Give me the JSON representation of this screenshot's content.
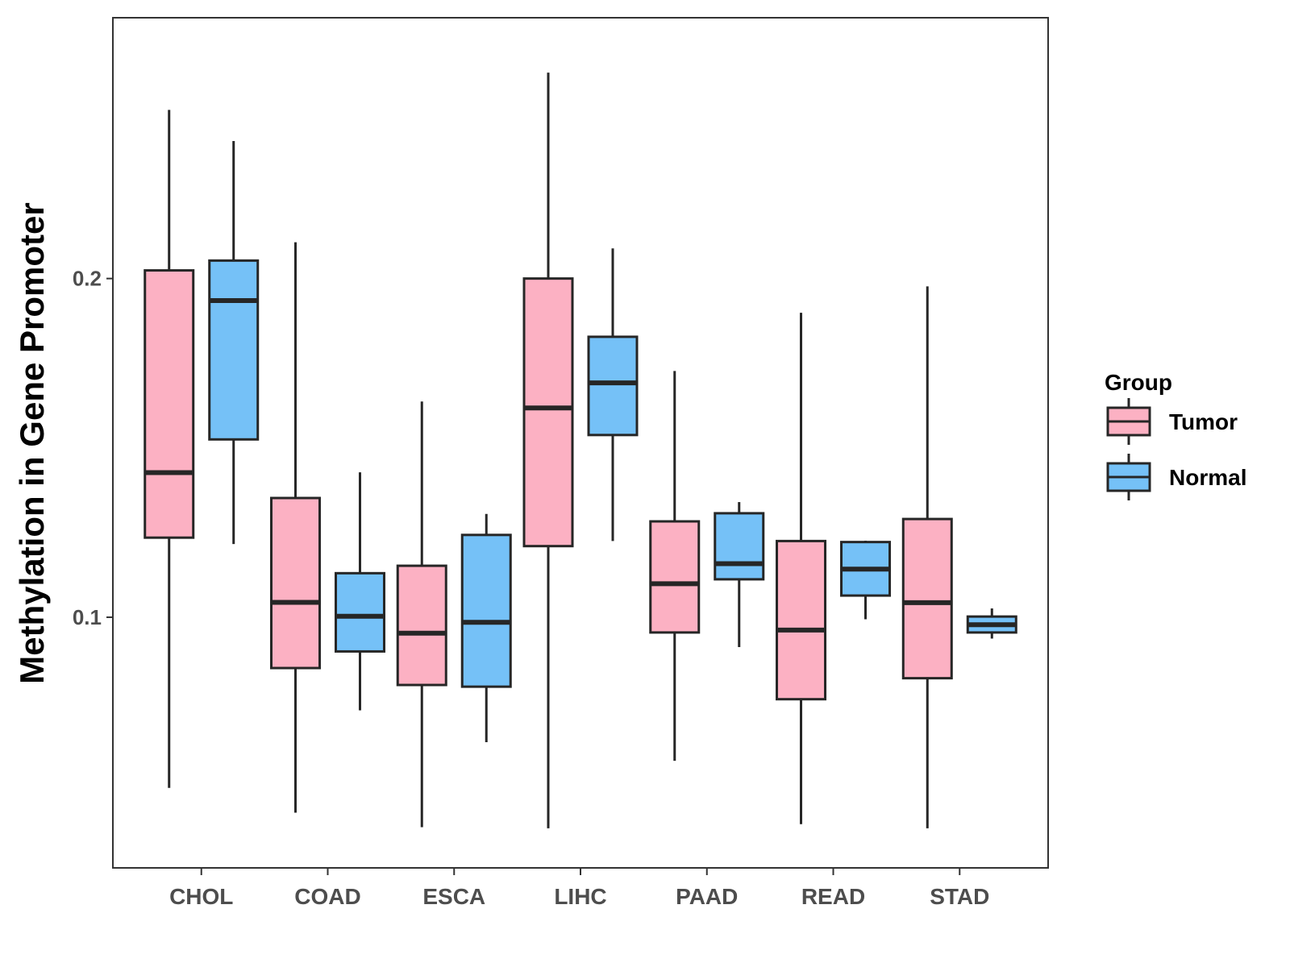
{
  "chart_data": {
    "type": "boxplot",
    "title": "",
    "xlabel": "",
    "ylabel": "Methylation in Gene Promoter",
    "ylim": [
      0.026,
      0.277
    ],
    "yticks": [
      0.1,
      0.2
    ],
    "ytick_labels": [
      "0.1",
      "0.2"
    ],
    "categories": [
      "CHOL",
      "COAD",
      "ESCA",
      "LIHC",
      "PAAD",
      "READ",
      "STAD"
    ],
    "legend": {
      "title": "Group",
      "position": "right",
      "entries": [
        "Tumor",
        "Normal"
      ]
    },
    "series": [
      {
        "name": "Tumor",
        "color": "#FCB1C3",
        "boxes": [
          {
            "category": "CHOL",
            "min": 0.0496,
            "q1": 0.1235,
            "median": 0.1427,
            "q3": 0.2024,
            "max": 0.2498
          },
          {
            "category": "COAD",
            "min": 0.0423,
            "q1": 0.085,
            "median": 0.1044,
            "q3": 0.1352,
            "max": 0.2107
          },
          {
            "category": "ESCA",
            "min": 0.038,
            "q1": 0.08,
            "median": 0.0953,
            "q3": 0.1152,
            "max": 0.1637
          },
          {
            "category": "LIHC",
            "min": 0.0377,
            "q1": 0.121,
            "median": 0.1618,
            "q3": 0.2,
            "max": 0.2608
          },
          {
            "category": "PAAD",
            "min": 0.0576,
            "q1": 0.0955,
            "median": 0.1099,
            "q3": 0.1283,
            "max": 0.1727
          },
          {
            "category": "READ",
            "min": 0.0389,
            "q1": 0.0758,
            "median": 0.0962,
            "q3": 0.1225,
            "max": 0.1899
          },
          {
            "category": "STAD",
            "min": 0.0377,
            "q1": 0.082,
            "median": 0.1043,
            "q3": 0.129,
            "max": 0.1977
          }
        ]
      },
      {
        "name": "Normal",
        "color": "#75C1F7",
        "boxes": [
          {
            "category": "CHOL",
            "min": 0.1216,
            "q1": 0.1525,
            "median": 0.1935,
            "q3": 0.2053,
            "max": 0.2406
          },
          {
            "category": "COAD",
            "min": 0.0725,
            "q1": 0.0899,
            "median": 0.1003,
            "q3": 0.113,
            "max": 0.1428
          },
          {
            "category": "ESCA",
            "min": 0.0631,
            "q1": 0.0795,
            "median": 0.0985,
            "q3": 0.1243,
            "max": 0.1305
          },
          {
            "category": "LIHC",
            "min": 0.1225,
            "q1": 0.1538,
            "median": 0.1692,
            "q3": 0.1828,
            "max": 0.2089
          },
          {
            "category": "PAAD",
            "min": 0.0912,
            "q1": 0.1112,
            "median": 0.1158,
            "q3": 0.1307,
            "max": 0.134
          },
          {
            "category": "READ",
            "min": 0.0994,
            "q1": 0.1064,
            "median": 0.1142,
            "q3": 0.1222,
            "max": 0.1226
          },
          {
            "category": "STAD",
            "min": 0.0937,
            "q1": 0.0955,
            "median": 0.0978,
            "q3": 0.1002,
            "max": 0.1026
          }
        ]
      }
    ]
  }
}
